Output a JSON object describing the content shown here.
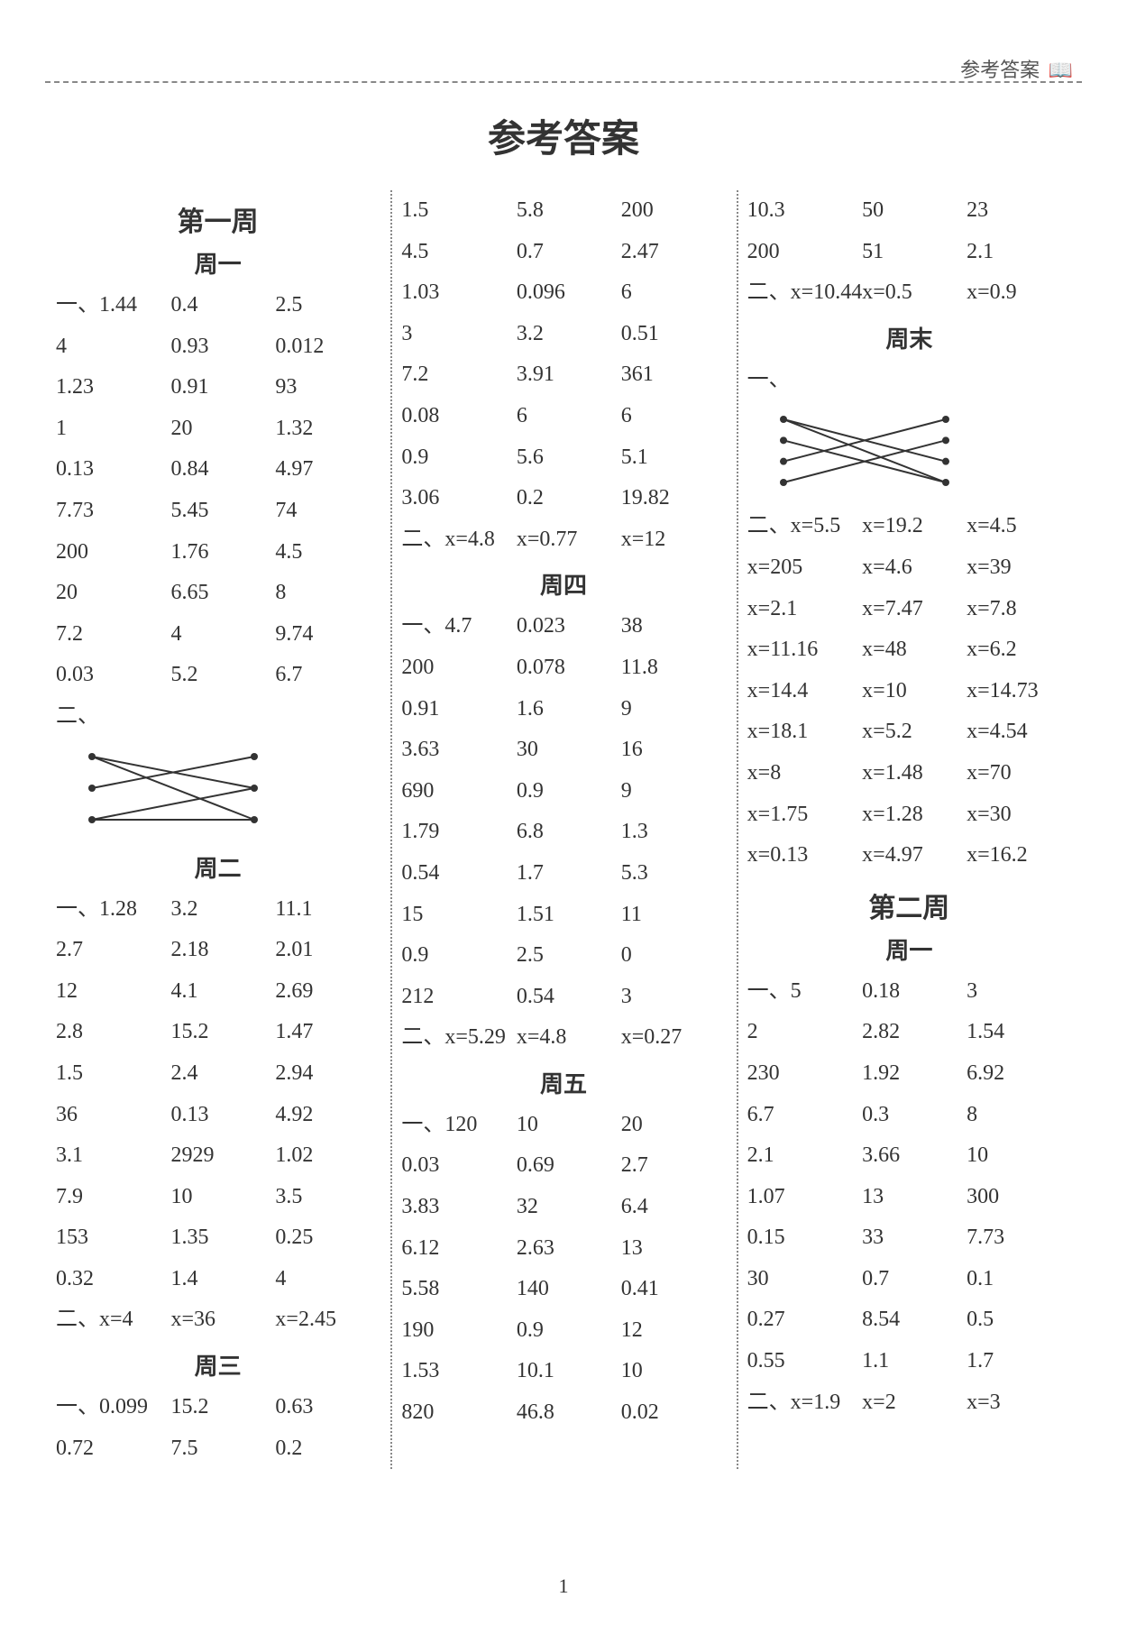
{
  "header": {
    "right_label": "参考答案",
    "book_icon": "📖"
  },
  "main_title": "参考答案",
  "page_number": "1",
  "colors": {
    "text": "#333333",
    "background": "#ffffff",
    "dashed_border": "#888888"
  },
  "col1": {
    "week_title": "第一周",
    "day1": {
      "title": "周一",
      "part1_prefix": "一、",
      "rows": [
        [
          "1.44",
          "0.4",
          "2.5"
        ],
        [
          "4",
          "0.93",
          "0.012"
        ],
        [
          "1.23",
          "0.91",
          "93"
        ],
        [
          "1",
          "20",
          "1.32"
        ],
        [
          "0.13",
          "0.84",
          "4.97"
        ],
        [
          "7.73",
          "5.45",
          "74"
        ],
        [
          "200",
          "1.76",
          "4.5"
        ],
        [
          "20",
          "6.65",
          "8"
        ],
        [
          "7.2",
          "4",
          "9.74"
        ],
        [
          "0.03",
          "5.2",
          "6.7"
        ]
      ],
      "part2_prefix": "二、",
      "diagram": {
        "type": "matching-lines",
        "left_points": 3,
        "right_points": 3,
        "connections": [
          [
            0,
            1
          ],
          [
            0,
            2
          ],
          [
            1,
            0
          ],
          [
            2,
            1
          ],
          [
            2,
            2
          ]
        ],
        "stroke": "#333333"
      }
    },
    "day2": {
      "title": "周二",
      "part1_prefix": "一、",
      "rows": [
        [
          "1.28",
          "3.2",
          "11.1"
        ],
        [
          "2.7",
          "2.18",
          "2.01"
        ],
        [
          "12",
          "4.1",
          "2.69"
        ],
        [
          "2.8",
          "15.2",
          "1.47"
        ],
        [
          "1.5",
          "2.4",
          "2.94"
        ],
        [
          "36",
          "0.13",
          "4.92"
        ],
        [
          "3.1",
          "2929",
          "1.02"
        ],
        [
          "7.9",
          "10",
          "3.5"
        ],
        [
          "153",
          "1.35",
          "0.25"
        ],
        [
          "0.32",
          "1.4",
          "4"
        ]
      ],
      "part2_prefix": "二、",
      "part2_row": [
        "x=4",
        "x=36",
        "x=2.45"
      ]
    },
    "day3": {
      "title": "周三",
      "part1_prefix": "一、",
      "rows": [
        [
          "0.099",
          "15.2",
          "0.63"
        ],
        [
          "0.72",
          "7.5",
          "0.2"
        ]
      ]
    }
  },
  "col2": {
    "day3_cont": {
      "rows": [
        [
          "1.5",
          "5.8",
          "200"
        ],
        [
          "4.5",
          "0.7",
          "2.47"
        ],
        [
          "1.03",
          "0.096",
          "6"
        ],
        [
          "3",
          "3.2",
          "0.51"
        ],
        [
          "7.2",
          "3.91",
          "361"
        ],
        [
          "0.08",
          "6",
          "6"
        ],
        [
          "0.9",
          "5.6",
          "5.1"
        ],
        [
          "3.06",
          "0.2",
          "19.82"
        ]
      ],
      "part2_prefix": "二、",
      "part2_row": [
        "x=4.8",
        "x=0.77",
        "x=12"
      ]
    },
    "day4": {
      "title": "周四",
      "part1_prefix": "一、",
      "rows": [
        [
          "4.7",
          "0.023",
          "38"
        ],
        [
          "200",
          "0.078",
          "11.8"
        ],
        [
          "0.91",
          "1.6",
          "9"
        ],
        [
          "3.63",
          "30",
          "16"
        ],
        [
          "690",
          "0.9",
          "9"
        ],
        [
          "1.79",
          "6.8",
          "1.3"
        ],
        [
          "0.54",
          "1.7",
          "5.3"
        ],
        [
          "15",
          "1.51",
          "11"
        ],
        [
          "0.9",
          "2.5",
          "0"
        ],
        [
          "212",
          "0.54",
          "3"
        ]
      ],
      "part2_prefix": "二、",
      "part2_row": [
        "x=5.29",
        "x=4.8",
        "x=0.27"
      ]
    },
    "day5": {
      "title": "周五",
      "part1_prefix": "一、",
      "rows": [
        [
          "120",
          "10",
          "20"
        ],
        [
          "0.03",
          "0.69",
          "2.7"
        ],
        [
          "3.83",
          "32",
          "6.4"
        ],
        [
          "6.12",
          "2.63",
          "13"
        ],
        [
          "5.58",
          "140",
          "0.41"
        ],
        [
          "190",
          "0.9",
          "12"
        ],
        [
          "1.53",
          "10.1",
          "10"
        ],
        [
          "820",
          "46.8",
          "0.02"
        ]
      ]
    }
  },
  "col3": {
    "day5_cont": {
      "rows": [
        [
          "10.3",
          "50",
          "23"
        ],
        [
          "200",
          "51",
          "2.1"
        ]
      ],
      "part2_prefix": "二、",
      "part2_row": [
        "x=10.44",
        "x=0.5",
        "x=0.9"
      ]
    },
    "weekend": {
      "title": "周末",
      "part1_prefix": "一、",
      "diagram": {
        "type": "matching-lines",
        "left_points": 4,
        "right_points": 4,
        "connections": [
          [
            0,
            2
          ],
          [
            1,
            3
          ],
          [
            2,
            0
          ],
          [
            3,
            1
          ],
          [
            0,
            3
          ]
        ],
        "stroke": "#333333"
      },
      "part2_prefix": "二、",
      "rows2": [
        [
          "x=5.5",
          "x=19.2",
          "x=4.5"
        ],
        [
          "x=205",
          "x=4.6",
          "x=39"
        ],
        [
          "x=2.1",
          "x=7.47",
          "x=7.8"
        ],
        [
          "x=11.16",
          "x=48",
          "x=6.2"
        ],
        [
          "x=14.4",
          "x=10",
          "x=14.73"
        ],
        [
          "x=18.1",
          "x=5.2",
          "x=4.54"
        ],
        [
          "x=8",
          "x=1.48",
          "x=70"
        ],
        [
          "x=1.75",
          "x=1.28",
          "x=30"
        ],
        [
          "x=0.13",
          "x=4.97",
          "x=16.2"
        ]
      ]
    },
    "week2": {
      "title": "第二周",
      "day1": {
        "title": "周一",
        "part1_prefix": "一、",
        "rows": [
          [
            "5",
            "0.18",
            "3"
          ],
          [
            "2",
            "2.82",
            "1.54"
          ],
          [
            "230",
            "1.92",
            "6.92"
          ],
          [
            "6.7",
            "0.3",
            "8"
          ],
          [
            "2.1",
            "3.66",
            "10"
          ],
          [
            "1.07",
            "13",
            "300"
          ],
          [
            "0.15",
            "33",
            "7.73"
          ],
          [
            "30",
            "0.7",
            "0.1"
          ],
          [
            "0.27",
            "8.54",
            "0.5"
          ],
          [
            "0.55",
            "1.1",
            "1.7"
          ]
        ],
        "part2_prefix": "二、",
        "part2_row": [
          "x=1.9",
          "x=2",
          "x=3"
        ]
      }
    }
  }
}
